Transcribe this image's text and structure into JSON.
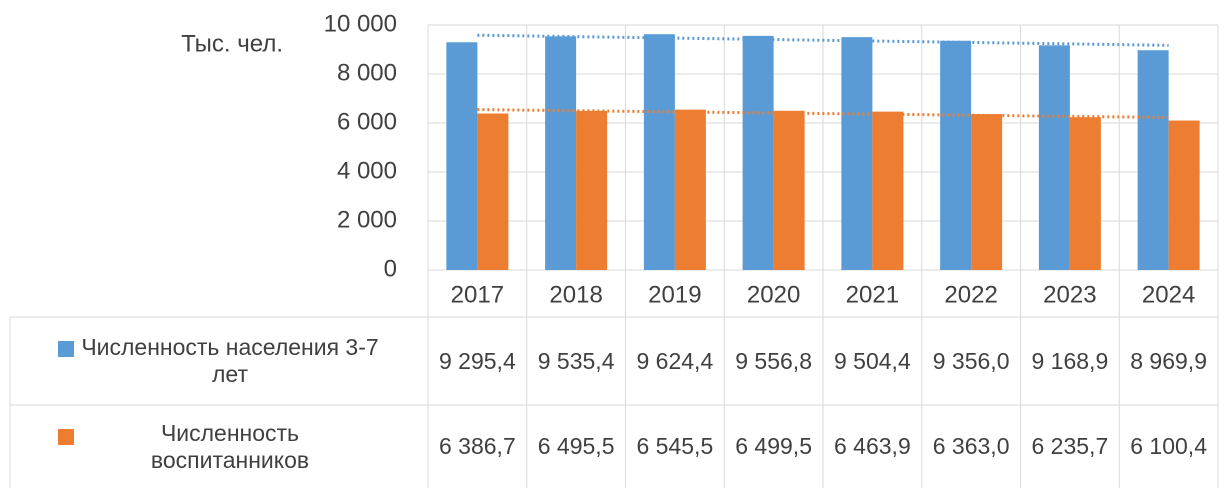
{
  "chart_data": {
    "type": "bar",
    "y_axis_label": "Тыс. чел.",
    "categories": [
      "2017",
      "2018",
      "2019",
      "2020",
      "2021",
      "2022",
      "2023",
      "2024"
    ],
    "series": [
      {
        "name": "Численность населения 3-7 лет",
        "color": "#5b9bd5",
        "values": [
          9295.4,
          9535.4,
          9624.4,
          9556.8,
          9504.4,
          9356.0,
          9168.9,
          8969.9
        ],
        "value_labels": [
          "9 295,4",
          "9 535,4",
          "9 624,4",
          "9 556,8",
          "9 504,4",
          "9 356,0",
          "9 168,9",
          "8 969,9"
        ]
      },
      {
        "name": "Численность воспитанников",
        "color": "#ed7d31",
        "values": [
          6386.7,
          6495.5,
          6545.5,
          6499.5,
          6463.9,
          6363.0,
          6235.7,
          6100.4
        ],
        "value_labels": [
          "6 386,7",
          "6 495,5",
          "6 545,5",
          "6 499,5",
          "6 463,9",
          "6 363,0",
          "6 235,7",
          "6 100,4"
        ]
      }
    ],
    "ylim": [
      0,
      10000
    ],
    "yticks": [
      0,
      {
        "value": 2000,
        "label": "2 000"
      },
      {
        "value": 4000,
        "label": "4 000"
      },
      {
        "value": 6000,
        "label": "6 000"
      },
      {
        "value": 8000,
        "label": "8 000"
      },
      {
        "value": 10000,
        "label": "10 000"
      }
    ],
    "grid": true,
    "trendline": true,
    "data_table": true
  }
}
